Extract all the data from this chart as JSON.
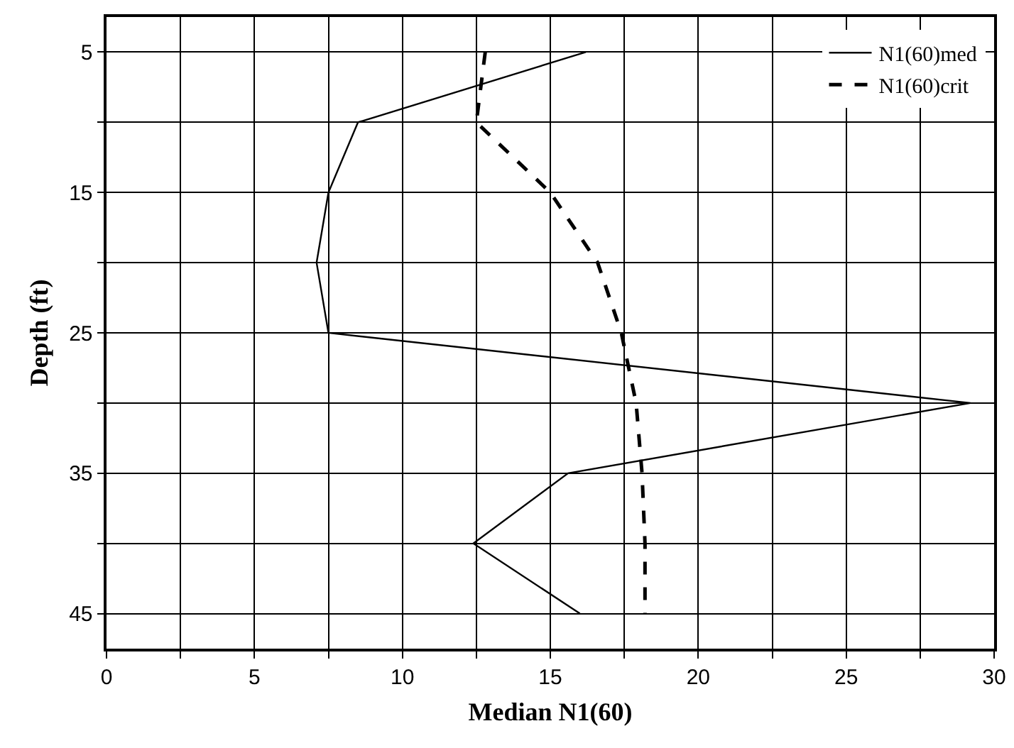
{
  "chart_data": {
    "type": "line",
    "orientation": "horizontal",
    "xlabel": "Median N1(60)",
    "ylabel": "Depth (ft)",
    "x": [
      5,
      10,
      15,
      20,
      25,
      30,
      35,
      40,
      45
    ],
    "series": [
      {
        "name": "N1(60)med",
        "color": "#000000",
        "line_style": "solid",
        "values": [
          16.2,
          8.5,
          7.5,
          7.1,
          7.5,
          29.2,
          15.6,
          12.4,
          16.0
        ]
      },
      {
        "name": "N1(60)crit",
        "color": "#000000",
        "line_style": "dashed",
        "values": [
          12.8,
          12.5,
          15.0,
          16.6,
          17.4,
          17.9,
          18.1,
          18.2,
          18.2
        ]
      }
    ],
    "xlim": [
      0,
      30
    ],
    "xticks": [
      0,
      {
        "value": 2.5,
        "label": null
      },
      5,
      {
        "value": 7.5,
        "label": null
      },
      10,
      {
        "value": 12.5,
        "label": null
      },
      15,
      {
        "value": 17.5,
        "label": null
      },
      20,
      {
        "value": 22.5,
        "label": null
      },
      25,
      {
        "value": 27.5,
        "label": null
      },
      30
    ],
    "ylim": [
      47.5,
      2.5
    ],
    "yticks": [
      5,
      {
        "value": 10,
        "label": null
      },
      15,
      {
        "value": 20,
        "label": null
      },
      25,
      {
        "value": 30,
        "label": null
      },
      35,
      {
        "value": 40,
        "label": null
      },
      45
    ],
    "grid": true,
    "legend": "top right",
    "marker": "none"
  }
}
